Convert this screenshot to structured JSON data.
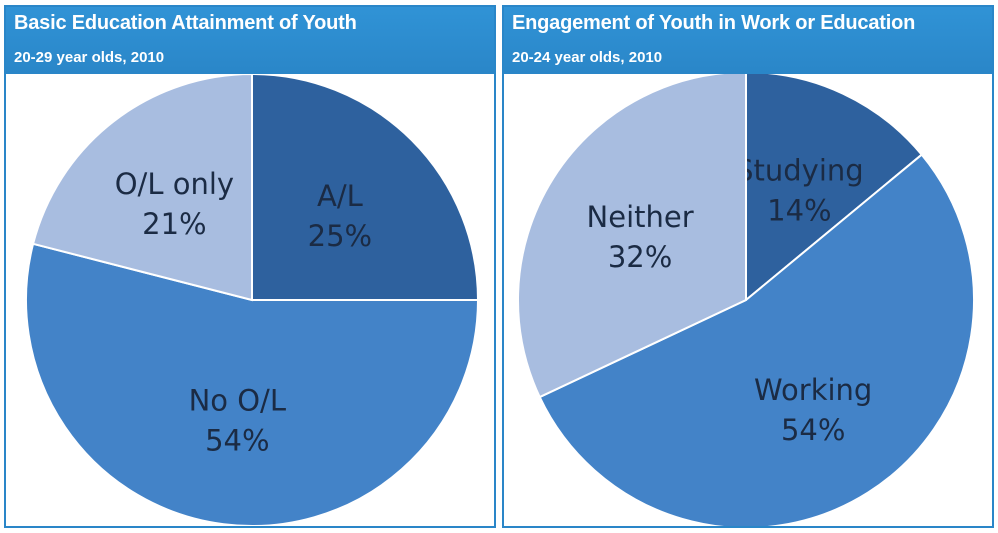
{
  "chart_data": [
    {
      "type": "pie",
      "title": "Basic Education Attainment of Youth",
      "subtitle": "20-29 year olds, 2010",
      "slices": [
        {
          "label": "A/L",
          "value": 25,
          "value_label": "25%",
          "color": "#2e619e"
        },
        {
          "label": "No O/L",
          "value": 54,
          "value_label": "54%",
          "color": "#4383c8"
        },
        {
          "label": "O/L only",
          "value": 21,
          "value_label": "21%",
          "color": "#a8bde0"
        }
      ]
    },
    {
      "type": "pie",
      "title": "Engagement of Youth in Work or Education",
      "subtitle": "20-24 year olds, 2010",
      "slices": [
        {
          "label": "Studying",
          "value": 14,
          "value_label": "14%",
          "color": "#2e619e"
        },
        {
          "label": "Working",
          "value": 54,
          "value_label": "54%",
          "color": "#4383c8"
        },
        {
          "label": "Neither",
          "value": 32,
          "value_label": "32%",
          "color": "#a8bde0"
        }
      ]
    }
  ]
}
